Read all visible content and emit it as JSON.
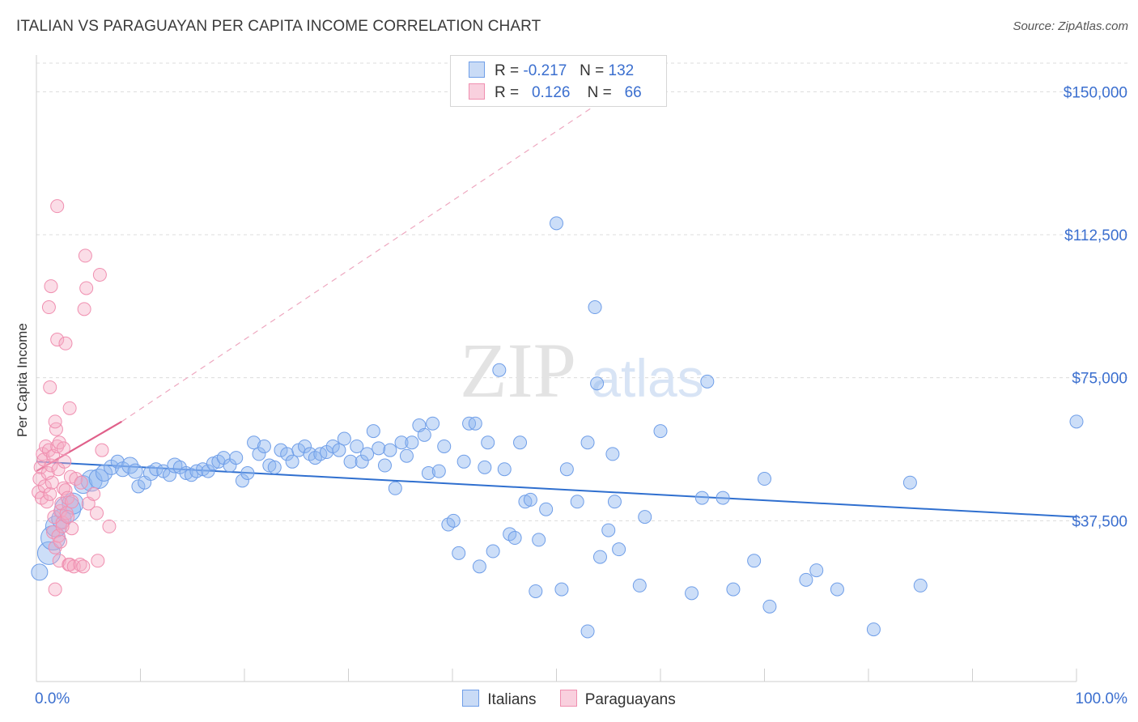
{
  "title": "ITALIAN VS PARAGUAYAN PER CAPITA INCOME CORRELATION CHART",
  "source": "Source: ZipAtlas.com",
  "watermark": {
    "zip": "ZIP",
    "atlas": "atlas"
  },
  "legend": {
    "italians": {
      "r_label": "R =",
      "r_value": "-0.217",
      "n_label": "N =",
      "n_value": "132"
    },
    "paraguayans": {
      "r_label": "R =",
      "r_value": "0.126",
      "n_label": "N =",
      "n_value": "66"
    }
  },
  "bottom_legend": {
    "italians": "Italians",
    "paraguayans": "Paraguayans"
  },
  "colors": {
    "italians": "#6f9ee8",
    "italians_line": "#2f6fcf",
    "paraguayans": "#f08fb0",
    "paraguayans_line": "#e0608a",
    "axis_text": "#3b6fcf"
  },
  "chart_data": {
    "type": "scatter",
    "ylabel": "Per Capita Income",
    "xlim": [
      0,
      100
    ],
    "ylim": [
      0,
      157500
    ],
    "x_tick_labels": [
      "0.0%",
      "100.0%"
    ],
    "y_ticks": [
      {
        "value": 37500,
        "label": "$37,500"
      },
      {
        "value": 75000,
        "label": "$75,000"
      },
      {
        "value": 112500,
        "label": "$112,500"
      },
      {
        "value": 150000,
        "label": "$150,000"
      }
    ],
    "grid": true,
    "series": [
      {
        "name": "Italians",
        "color": "#6f9ee8",
        "trend": {
          "x": [
            0,
            100
          ],
          "y": [
            53000,
            38500
          ]
        },
        "points": [
          [
            0.3,
            24000,
            10
          ],
          [
            1.2,
            29000,
            14
          ],
          [
            1.6,
            33000,
            15
          ],
          [
            1.9,
            36000,
            13
          ],
          [
            2.4,
            38000,
            12
          ],
          [
            3.0,
            40500,
            16
          ],
          [
            3.5,
            42000,
            13
          ],
          [
            4.5,
            47000,
            11
          ],
          [
            5.3,
            48000,
            13
          ],
          [
            6.0,
            48500,
            12
          ],
          [
            6.5,
            50000,
            10
          ],
          [
            7.2,
            51500,
            9
          ],
          [
            7.8,
            53000,
            8
          ],
          [
            8.3,
            51000,
            9
          ],
          [
            9.0,
            52000,
            10
          ],
          [
            9.5,
            50500,
            9
          ],
          [
            9.8,
            46500,
            8
          ],
          [
            10.4,
            47500,
            8
          ],
          [
            11.0,
            50000,
            9
          ],
          [
            11.5,
            51000,
            8
          ],
          [
            12.2,
            50500,
            8
          ],
          [
            12.8,
            49500,
            8
          ],
          [
            13.3,
            52000,
            9
          ],
          [
            13.8,
            51500,
            8
          ],
          [
            14.4,
            50000,
            8
          ],
          [
            14.9,
            49500,
            8
          ],
          [
            15.4,
            50500,
            8
          ],
          [
            16.0,
            51000,
            8
          ],
          [
            16.5,
            50500,
            8
          ],
          [
            17.0,
            52500,
            8
          ],
          [
            17.5,
            53000,
            8
          ],
          [
            18.0,
            54000,
            8
          ],
          [
            18.6,
            52000,
            8
          ],
          [
            19.2,
            54000,
            8
          ],
          [
            19.8,
            48000,
            8
          ],
          [
            20.3,
            50000,
            8
          ],
          [
            20.9,
            58000,
            8
          ],
          [
            21.4,
            55000,
            8
          ],
          [
            21.9,
            57000,
            8
          ],
          [
            22.4,
            52000,
            8
          ],
          [
            22.9,
            51500,
            8
          ],
          [
            23.5,
            56000,
            8
          ],
          [
            24.1,
            55000,
            8
          ],
          [
            24.6,
            53000,
            8
          ],
          [
            25.2,
            56000,
            8
          ],
          [
            25.8,
            57000,
            8
          ],
          [
            26.3,
            55000,
            8
          ],
          [
            26.8,
            54000,
            8
          ],
          [
            27.3,
            55000,
            8
          ],
          [
            27.9,
            55500,
            8
          ],
          [
            28.5,
            57000,
            8
          ],
          [
            29.1,
            56000,
            8
          ],
          [
            29.6,
            59000,
            8
          ],
          [
            30.2,
            53000,
            8
          ],
          [
            30.8,
            57000,
            8
          ],
          [
            31.3,
            53000,
            8
          ],
          [
            31.8,
            55000,
            8
          ],
          [
            32.4,
            61000,
            8
          ],
          [
            32.9,
            56500,
            8
          ],
          [
            33.5,
            52000,
            8
          ],
          [
            34.0,
            56000,
            8
          ],
          [
            34.5,
            46000,
            8
          ],
          [
            35.1,
            58000,
            8
          ],
          [
            35.6,
            54500,
            8
          ],
          [
            36.1,
            58000,
            8
          ],
          [
            36.8,
            62500,
            8
          ],
          [
            37.3,
            60000,
            8
          ],
          [
            37.7,
            50000,
            8
          ],
          [
            38.1,
            63000,
            8
          ],
          [
            38.7,
            50500,
            8
          ],
          [
            39.2,
            57000,
            8
          ],
          [
            39.6,
            36500,
            8
          ],
          [
            40.1,
            37500,
            8
          ],
          [
            40.6,
            29000,
            8
          ],
          [
            41.1,
            53000,
            8
          ],
          [
            41.6,
            63000,
            8
          ],
          [
            42.2,
            63000,
            8
          ],
          [
            42.6,
            25500,
            8
          ],
          [
            43.1,
            51500,
            8
          ],
          [
            43.4,
            58000,
            8
          ],
          [
            43.9,
            29500,
            8
          ],
          [
            44.5,
            77000,
            8
          ],
          [
            45.0,
            51000,
            8
          ],
          [
            45.5,
            34000,
            8
          ],
          [
            46.0,
            33000,
            8
          ],
          [
            46.5,
            58000,
            8
          ],
          [
            47.0,
            42500,
            8
          ],
          [
            47.5,
            43000,
            8
          ],
          [
            48.0,
            19000,
            8
          ],
          [
            48.3,
            32500,
            8
          ],
          [
            49.0,
            40500,
            8
          ],
          [
            50.0,
            115500,
            8
          ],
          [
            50.5,
            19500,
            8
          ],
          [
            51.0,
            51000,
            8
          ],
          [
            52.0,
            42500,
            8
          ],
          [
            53.0,
            8500,
            8
          ],
          [
            53.7,
            93500,
            8
          ],
          [
            53.9,
            73500,
            8
          ],
          [
            53.0,
            58000,
            8
          ],
          [
            54.2,
            28000,
            8
          ],
          [
            55.0,
            35000,
            8
          ],
          [
            55.4,
            55000,
            8
          ],
          [
            55.6,
            42500,
            8
          ],
          [
            56.0,
            30000,
            8
          ],
          [
            58.0,
            20500,
            8
          ],
          [
            58.5,
            38500,
            8
          ],
          [
            60.0,
            61000,
            8
          ],
          [
            63.0,
            18500,
            8
          ],
          [
            64.0,
            43500,
            8
          ],
          [
            64.5,
            74000,
            8
          ],
          [
            66.0,
            43500,
            8
          ],
          [
            67.0,
            19500,
            8
          ],
          [
            69.0,
            27000,
            8
          ],
          [
            70.0,
            48500,
            8
          ],
          [
            70.5,
            15000,
            8
          ],
          [
            74.0,
            22000,
            8
          ],
          [
            75.0,
            24500,
            8
          ],
          [
            77.0,
            19500,
            8
          ],
          [
            80.5,
            9000,
            8
          ],
          [
            84.0,
            47500,
            8
          ],
          [
            85.0,
            20500,
            8
          ],
          [
            100.0,
            63500,
            8
          ]
        ]
      },
      {
        "name": "Paraguayans",
        "color": "#f08fb0",
        "trend": {
          "x": [
            0,
            8.2
          ],
          "y": [
            50500,
            63500
          ]
        },
        "trend_dashed": {
          "x": [
            8.2,
            53.5
          ],
          "y": [
            63500,
            146000
          ]
        },
        "points": [
          [
            0.2,
            45000,
            8
          ],
          [
            0.3,
            48500,
            8
          ],
          [
            0.4,
            51500,
            8
          ],
          [
            0.5,
            43500,
            8
          ],
          [
            0.6,
            55000,
            8
          ],
          [
            0.7,
            53500,
            8
          ],
          [
            0.8,
            46500,
            8
          ],
          [
            0.9,
            57000,
            8
          ],
          [
            1.0,
            42500,
            8
          ],
          [
            1.1,
            50000,
            8
          ],
          [
            1.2,
            56000,
            8
          ],
          [
            1.3,
            44500,
            8
          ],
          [
            1.4,
            52000,
            8
          ],
          [
            1.5,
            47500,
            8
          ],
          [
            1.6,
            54500,
            8
          ],
          [
            1.7,
            38500,
            8
          ],
          [
            1.8,
            30500,
            8
          ],
          [
            1.9,
            61500,
            8
          ],
          [
            2.0,
            57000,
            8
          ],
          [
            2.1,
            51000,
            8
          ],
          [
            2.2,
            58000,
            8
          ],
          [
            1.2,
            93500,
            8
          ],
          [
            1.3,
            72500,
            8
          ],
          [
            1.4,
            99000,
            8
          ],
          [
            1.6,
            34500,
            8
          ],
          [
            1.8,
            63500,
            8
          ],
          [
            2.0,
            85000,
            8
          ],
          [
            2.1,
            33500,
            8
          ],
          [
            2.2,
            27000,
            8
          ],
          [
            2.3,
            40000,
            8
          ],
          [
            2.4,
            42000,
            8
          ],
          [
            2.5,
            37000,
            8
          ],
          [
            2.6,
            46000,
            8
          ],
          [
            2.7,
            53000,
            8
          ],
          [
            2.8,
            45500,
            8
          ],
          [
            2.9,
            39500,
            8
          ],
          [
            3.0,
            43500,
            8
          ],
          [
            3.1,
            26000,
            8
          ],
          [
            3.2,
            26000,
            8
          ],
          [
            3.3,
            49000,
            8
          ],
          [
            3.4,
            35500,
            8
          ],
          [
            1.8,
            19500,
            8
          ],
          [
            2.0,
            120000,
            8
          ],
          [
            2.3,
            32000,
            8
          ],
          [
            2.5,
            36000,
            8
          ],
          [
            2.6,
            56500,
            8
          ],
          [
            2.8,
            84000,
            8
          ],
          [
            3.0,
            38500,
            8
          ],
          [
            3.2,
            67000,
            8
          ],
          [
            3.4,
            42500,
            8
          ],
          [
            3.6,
            25500,
            8
          ],
          [
            3.8,
            48500,
            8
          ],
          [
            4.2,
            26000,
            8
          ],
          [
            4.3,
            47500,
            8
          ],
          [
            4.5,
            25500,
            8
          ],
          [
            4.6,
            93000,
            8
          ],
          [
            4.7,
            107000,
            8
          ],
          [
            4.8,
            98500,
            8
          ],
          [
            5.0,
            42000,
            8
          ],
          [
            5.5,
            44500,
            8
          ],
          [
            5.8,
            39500,
            8
          ],
          [
            5.9,
            27000,
            8
          ],
          [
            6.1,
            102000,
            8
          ],
          [
            6.3,
            56000,
            8
          ],
          [
            7.0,
            36000,
            8
          ]
        ]
      }
    ]
  }
}
